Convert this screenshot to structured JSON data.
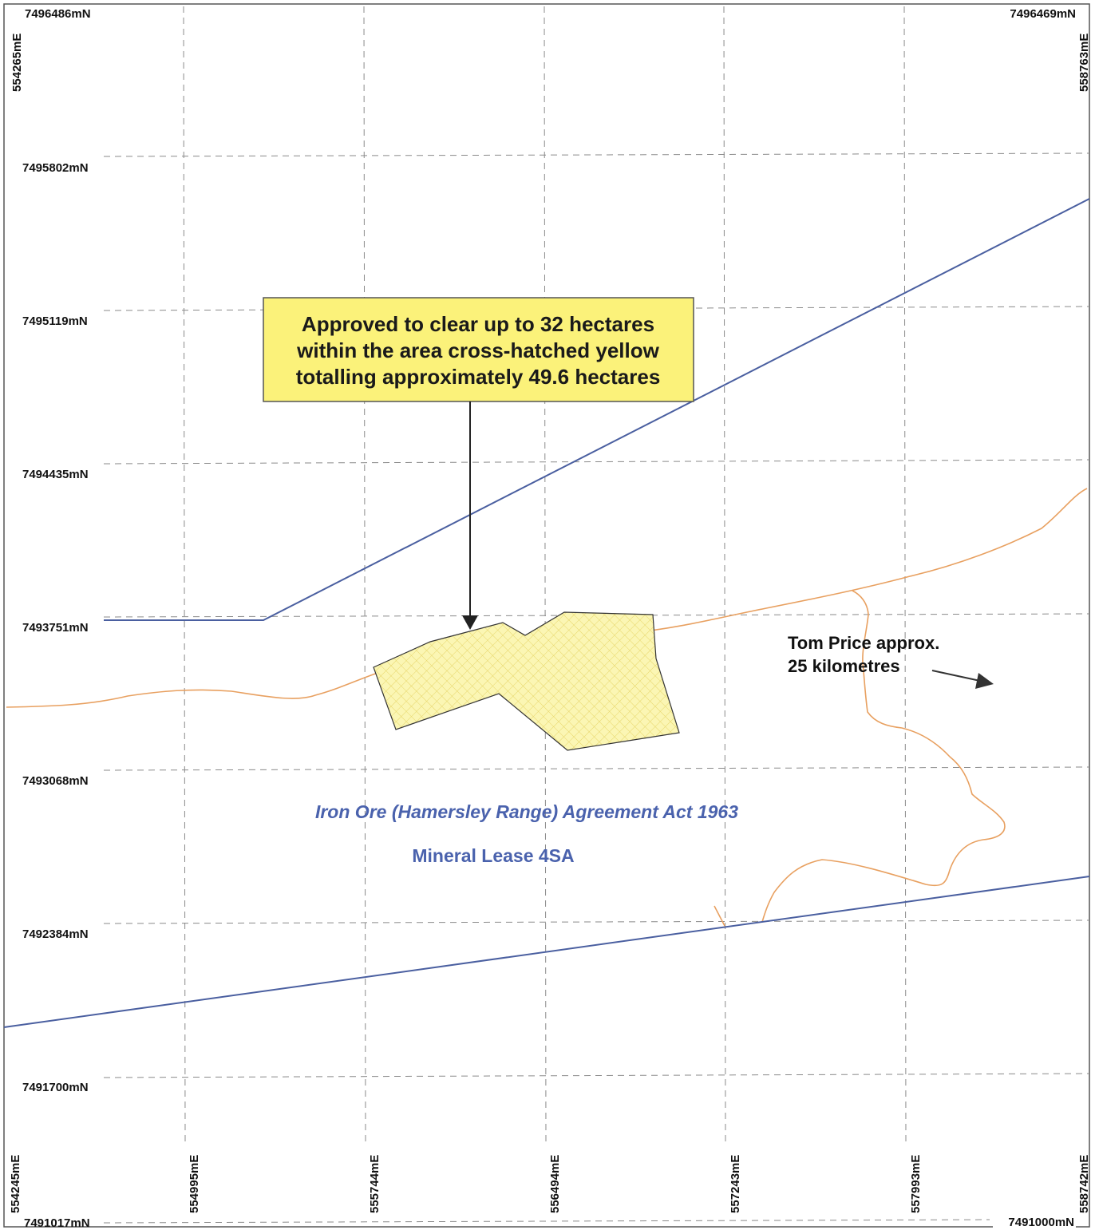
{
  "grid": {
    "northings": [
      "7495802mN",
      "7495119mN",
      "7494435mN",
      "7493751mN",
      "7493068mN",
      "7492384mN",
      "7491700mN"
    ],
    "eastings": [
      "554245mE",
      "554995mE",
      "555744mE",
      "556494mE",
      "557243mE",
      "557993mE",
      "558742mE"
    ],
    "corners": {
      "top_left_north": "7496486mN",
      "top_right_north": "7496469mN",
      "bottom_left_north": "7491017mN",
      "bottom_right_north": "7491000mN",
      "top_left_east": "554265mE",
      "top_right_east": "558763mE"
    }
  },
  "callout": {
    "lines": [
      "Approved to clear up to 32 hectares",
      "within the area cross-hatched yellow",
      "totalling approximately 49.6 hectares"
    ]
  },
  "tom_price": {
    "lines": [
      "Tom Price approx.",
      "25 kilometres"
    ]
  },
  "act_label": "Iron Ore (Hamersley Range) Agreement Act 1963",
  "lease_label": "Mineral Lease 4SA",
  "colors": {
    "boundary": "#4a5fa0",
    "road": "#e8a060",
    "clearing_fill": "#fbf6b4",
    "callout_fill": "#fbf27a",
    "label_blue": "#4a62ad"
  }
}
